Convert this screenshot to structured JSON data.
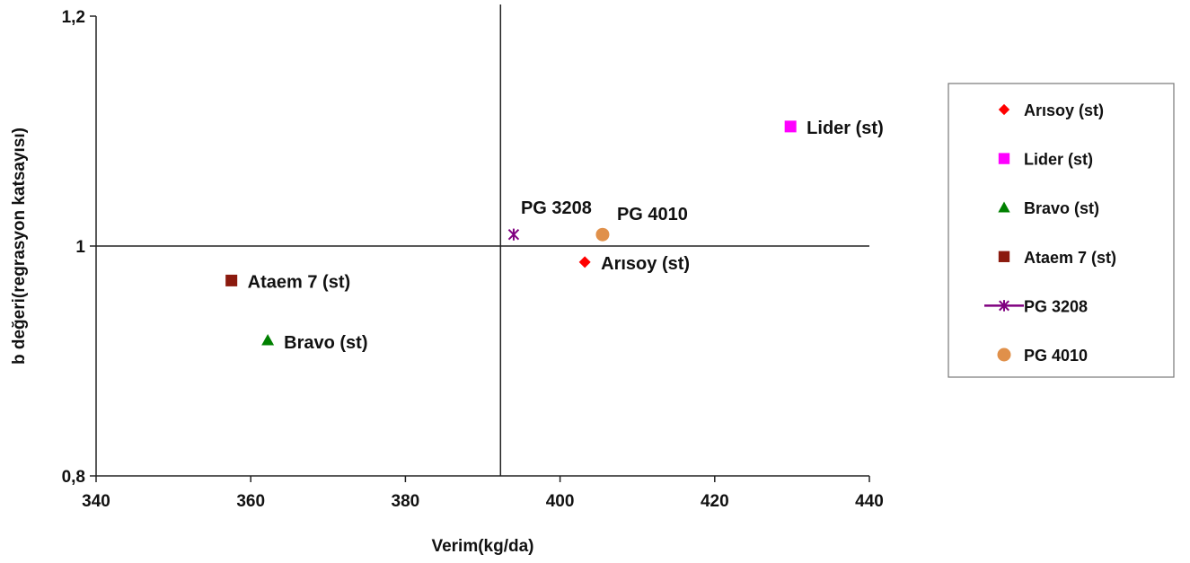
{
  "chart_data": {
    "type": "scatter",
    "title": "",
    "xlabel": "Verim(kg/da)",
    "ylabel": "b değeri(regrasyon katsayısı)",
    "xlim": [
      340,
      440
    ],
    "ylim": [
      0.8,
      1.2
    ],
    "x_ticks": [
      340,
      360,
      380,
      400,
      420,
      440
    ],
    "x_tick_labels": [
      "340",
      "360",
      "380",
      "400",
      "420",
      "440"
    ],
    "y_ticks": [
      0.8,
      1.0,
      1.2
    ],
    "y_tick_labels": [
      "0,8",
      "1",
      "1,2"
    ],
    "reference_lines": {
      "x": 392.3,
      "y": 1.0
    },
    "grid": false,
    "legend_position": "right",
    "series": [
      {
        "name": "Arısoy (st)",
        "label": "Arısoy (st)",
        "marker": "diamond",
        "color": "#ff0000",
        "x": 403.2,
        "y": 0.986
      },
      {
        "name": "Lider (st)",
        "label": "Lider (st)",
        "marker": "square",
        "color": "#ff00ff",
        "x": 429.8,
        "y": 1.104
      },
      {
        "name": "Bravo (st)",
        "label": "Bravo (st)",
        "marker": "triangle",
        "color": "#008000",
        "x": 362.2,
        "y": 0.918
      },
      {
        "name": "Ataem 7 (st)",
        "label": "Ataem 7 (st)",
        "marker": "square",
        "color": "#8b1a0e",
        "x": 357.5,
        "y": 0.97
      },
      {
        "name": "PG 3208",
        "label": "PG 3208",
        "marker": "star",
        "color": "#800080",
        "x": 394.0,
        "y": 1.01
      },
      {
        "name": "PG 4010",
        "label": "PG 4010",
        "marker": "circle",
        "color": "#e0904a",
        "x": 405.5,
        "y": 1.01
      }
    ]
  }
}
